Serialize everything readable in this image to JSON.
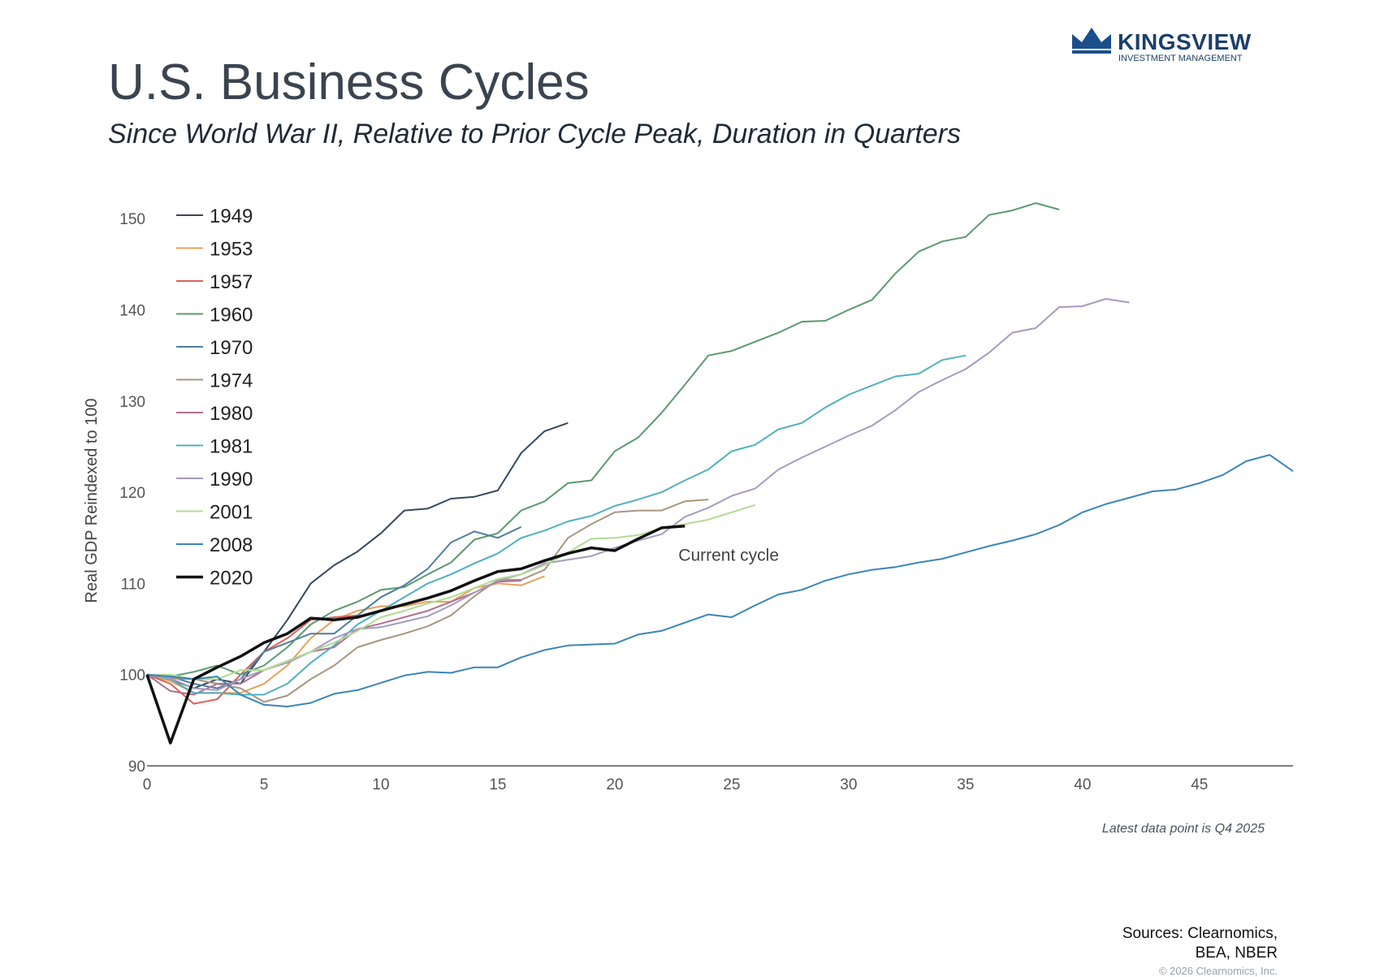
{
  "header": {
    "title": "U.S. Business Cycles",
    "subtitle": "Since World War II, Relative to Prior Cycle Peak, Duration in Quarters"
  },
  "logo": {
    "name": "KINGSVIEW",
    "subtitle": "INVESTMENT MANAGEMENT",
    "color": "#1b3f6b"
  },
  "chart_data": {
    "type": "line",
    "title": "U.S. Business Cycles",
    "subtitle": "Since World War II, Relative to Prior Cycle Peak, Duration in Quarters",
    "xlabel": "",
    "ylabel": "Real GDP Reindexed to 100",
    "xlim": [
      0,
      49
    ],
    "ylim": [
      90,
      151
    ],
    "xticks": [
      0,
      5,
      10,
      15,
      20,
      25,
      30,
      35,
      40,
      45
    ],
    "yticks": [
      90,
      100,
      110,
      120,
      130,
      140,
      150
    ],
    "grid": false,
    "legend_position": "top-left",
    "annotation": "Current cycle",
    "annotation_x": 23,
    "annotation_y": 113,
    "series": [
      {
        "name": "1949",
        "color": "#34495e",
        "values": [
          100,
          99.5,
          98.5,
          99.5,
          99,
          102.5,
          106,
          110,
          112,
          113.5,
          115.5,
          118,
          118.2,
          119.3,
          119.5,
          120.2,
          124.3,
          126.7,
          127.6
        ]
      },
      {
        "name": "1953",
        "color": "#e8a15a",
        "values": [
          100,
          99.3,
          98,
          98,
          98,
          99,
          101,
          104,
          106,
          107,
          107.5,
          107.5,
          108,
          108,
          109.5,
          110,
          109.8,
          110.8
        ]
      },
      {
        "name": "1957",
        "color": "#d9635a",
        "values": [
          100,
          99,
          96.8,
          97.3,
          100,
          102.5,
          104,
          106,
          106.3,
          106.5
        ]
      },
      {
        "name": "1960",
        "color": "#5b9a6e",
        "values": [
          100,
          99.8,
          100.3,
          101,
          100,
          101,
          103,
          105.5,
          107,
          108,
          109.3,
          109.6,
          111,
          112.3,
          114.8,
          115.5,
          118,
          119,
          121,
          121.3,
          124.5,
          126,
          128.7,
          131.8,
          135,
          135.5,
          136.5,
          137.5,
          138.7,
          138.8,
          140,
          141.1,
          144,
          146.4,
          147.5,
          148,
          150.4,
          150.9,
          151.7,
          151
        ]
      },
      {
        "name": "1970",
        "color": "#4e7fa0",
        "values": [
          100,
          99.8,
          99,
          98.5,
          99.5,
          102.5,
          103.5,
          104.5,
          104.5,
          106.5,
          108.5,
          109.8,
          111.6,
          114.5,
          115.7,
          115,
          116.2
        ]
      },
      {
        "name": "1974",
        "color": "#a89580",
        "values": [
          100,
          99.6,
          99.5,
          99,
          98.5,
          97,
          97.7,
          99.5,
          101,
          103,
          103.8,
          104.5,
          105.3,
          106.5,
          108.6,
          110.4,
          110.4,
          111.5,
          115,
          116.5,
          117.8,
          118,
          118,
          119,
          119.2
        ]
      },
      {
        "name": "1980",
        "color": "#b07090",
        "values": [
          100,
          98.2,
          97.8,
          99,
          99,
          100.5,
          101.5,
          102.5,
          103,
          105,
          105.6,
          106.3,
          107,
          108,
          109,
          110.2,
          110.3
        ]
      },
      {
        "name": "1981",
        "color": "#4fb0c0",
        "values": [
          100,
          99.5,
          98,
          98,
          97.8,
          97.8,
          99,
          101.3,
          103.2,
          105.5,
          107,
          108.5,
          110,
          111,
          112.2,
          113.3,
          115,
          115.8,
          116.8,
          117.4,
          118.5,
          119.2,
          120,
          121.3,
          122.5,
          124.5,
          125.2,
          126.9,
          127.6,
          129.3,
          130.7,
          131.7,
          132.7,
          133,
          134.5,
          135
        ]
      },
      {
        "name": "1990",
        "color": "#a69ac0",
        "values": [
          100,
          99.6,
          98.5,
          98.3,
          99.5,
          100.5,
          101.3,
          102.5,
          104,
          105,
          105.2,
          105.8,
          106.4,
          107.6,
          109,
          110.3,
          111,
          112.2,
          112.6,
          113,
          113.9,
          114.7,
          115.4,
          117.3,
          118.3,
          119.6,
          120.4,
          122.5,
          123.8,
          125,
          126.2,
          127.3,
          129,
          131,
          132.3,
          133.5,
          135.3,
          137.5,
          138,
          140.3,
          140.4,
          141.2,
          140.8
        ]
      },
      {
        "name": "2001",
        "color": "#b0dc90",
        "values": [
          100,
          100,
          99.5,
          99.5,
          100.5,
          100.5,
          101.5,
          102.5,
          103.5,
          104.8,
          106.3,
          107,
          107.8,
          108.5,
          109.5,
          110.5,
          111,
          112,
          113.4,
          114.9,
          115,
          115.3,
          116,
          116.5,
          117,
          117.8,
          118.6
        ]
      },
      {
        "name": "2008",
        "color": "#3a85b8",
        "values": [
          100,
          99.8,
          99.5,
          99.8,
          97.8,
          96.7,
          96.5,
          96.9,
          97.9,
          98.3,
          99.1,
          99.9,
          100.3,
          100.2,
          100.8,
          100.8,
          101.9,
          102.7,
          103.2,
          103.3,
          103.4,
          104.4,
          104.8,
          105.7,
          106.6,
          106.3,
          107.6,
          108.8,
          109.3,
          110.3,
          111,
          111.5,
          111.8,
          112.3,
          112.7,
          113.4,
          114.1,
          114.7,
          115.4,
          116.4,
          117.8,
          118.7,
          119.4,
          120.1,
          120.3,
          121,
          121.9,
          123.4,
          124.1,
          122.3
        ]
      },
      {
        "name": "2020",
        "color": "#111111",
        "values": [
          100,
          92.5,
          99.5,
          100.8,
          102,
          103.5,
          104.5,
          106.2,
          106,
          106.3,
          107,
          107.7,
          108.4,
          109.2,
          110.3,
          111.3,
          111.6,
          112.5,
          113.3,
          113.9,
          113.6,
          114.9,
          116.1,
          116.3
        ]
      }
    ]
  },
  "footer": {
    "latest_note": "Latest data point is Q4 2025",
    "sources_line1": "Sources: Clearnomics,",
    "sources_line2": "BEA, NBER",
    "copyright": "© 2026 Clearnomics, Inc."
  }
}
